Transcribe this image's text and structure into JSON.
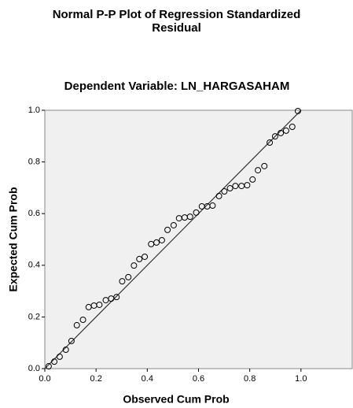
{
  "chart_data": {
    "type": "scatter",
    "title": "Normal P-P Plot of Regression Standardized Residual",
    "subtitle": "Dependent Variable: LN_HARGASAHAM",
    "x_label": "Observed Cum Prob",
    "y_label": "Expected Cum Prob",
    "x": [
      0.015,
      0.037,
      0.058,
      0.082,
      0.104,
      0.125,
      0.149,
      0.171,
      0.192,
      0.213,
      0.238,
      0.259,
      0.28,
      0.302,
      0.326,
      0.348,
      0.369,
      0.39,
      0.415,
      0.436,
      0.457,
      0.479,
      0.503,
      0.524,
      0.546,
      0.567,
      0.591,
      0.613,
      0.634,
      0.655,
      0.68,
      0.701,
      0.723,
      0.744,
      0.768,
      0.79,
      0.811,
      0.832,
      0.857,
      0.878,
      0.899,
      0.921,
      0.942,
      0.966,
      0.988
    ],
    "values": [
      0.009,
      0.027,
      0.046,
      0.073,
      0.107,
      0.168,
      0.189,
      0.238,
      0.244,
      0.247,
      0.265,
      0.271,
      0.277,
      0.338,
      0.354,
      0.399,
      0.424,
      0.433,
      0.482,
      0.488,
      0.497,
      0.537,
      0.555,
      0.582,
      0.585,
      0.588,
      0.604,
      0.628,
      0.628,
      0.631,
      0.668,
      0.686,
      0.698,
      0.707,
      0.707,
      0.71,
      0.732,
      0.768,
      0.784,
      0.875,
      0.899,
      0.912,
      0.921,
      0.936,
      0.997
    ],
    "reference_line": {
      "x": [
        0,
        1
      ],
      "y": [
        0,
        1
      ]
    },
    "xlim": [
      0,
      1.2
    ],
    "ylim": [
      0,
      1
    ],
    "xticks": [
      {
        "value": 0,
        "label": "0.0"
      },
      0.2,
      0.4,
      0.6,
      0.8,
      {
        "value": 1,
        "label": "1.0"
      }
    ],
    "yticks": [
      {
        "value": 0,
        "label": "0.0"
      },
      0.2,
      0.4,
      0.6,
      0.8,
      {
        "value": 1,
        "label": "1.0"
      }
    ],
    "color": "#000000",
    "background": "#f0f0f0",
    "grid": false
  }
}
